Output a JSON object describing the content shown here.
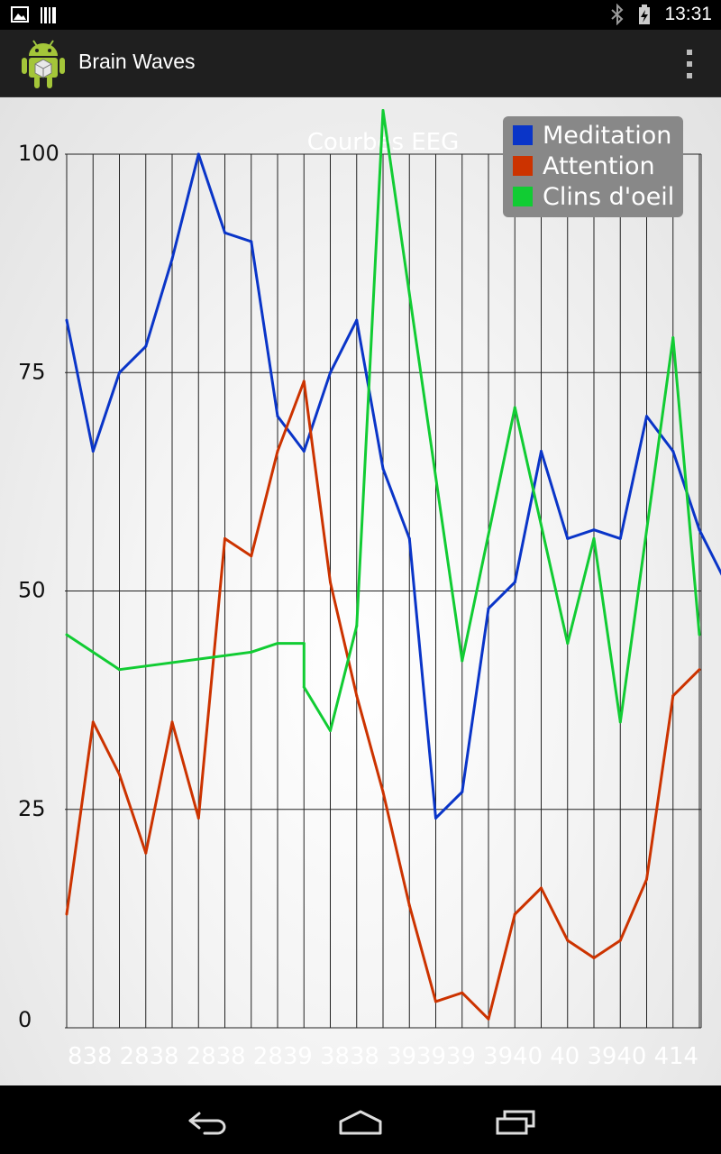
{
  "status_bar": {
    "time": "13:31",
    "left_icons": [
      "image-icon",
      "barcode-icon"
    ],
    "right_icons": [
      "bluetooth-icon",
      "battery-charging-icon"
    ]
  },
  "action_bar": {
    "title": "Brain Waves",
    "app_icon": "android-robot-icon",
    "menu_icon": "overflow-menu-icon"
  },
  "nav_bar": {
    "icons": [
      "back-icon",
      "home-icon",
      "recent-apps-icon"
    ]
  },
  "chart_data": {
    "type": "line",
    "title": "Courbes EEG",
    "ylim": [
      0,
      100
    ],
    "y_ticks": [
      0,
      25,
      50,
      75,
      100
    ],
    "grid": true,
    "legend_position": "top-right",
    "x_tick_label_text": "838 2838 2838 2839 3838 393939 3940 40 3940 414",
    "series": [
      {
        "name": "Meditation",
        "color": "#0a35c8",
        "values": [
          81,
          66,
          75,
          78,
          88,
          100,
          91,
          90,
          70,
          66,
          75,
          81,
          64,
          56,
          24,
          27,
          48,
          51,
          66,
          56,
          57,
          56,
          70,
          66,
          57,
          51
        ]
      },
      {
        "name": "Attention",
        "color": "#cc3300",
        "values": [
          13,
          35,
          29,
          20,
          35,
          24,
          56,
          54,
          66,
          74,
          51,
          38,
          27,
          14,
          3,
          4,
          1,
          13,
          16,
          10,
          8,
          10,
          17,
          38,
          41
        ]
      },
      {
        "name": "Clins d'oeil",
        "color": "#11cc33",
        "points": [
          [
            0,
            45
          ],
          [
            2,
            41
          ],
          [
            7,
            43
          ],
          [
            8,
            44
          ],
          [
            9,
            44
          ],
          [
            9,
            39
          ],
          [
            10,
            34
          ],
          [
            11,
            46
          ],
          [
            12,
            105
          ],
          [
            15,
            42
          ],
          [
            17,
            71
          ],
          [
            19,
            44
          ],
          [
            20,
            56
          ],
          [
            21,
            35
          ],
          [
            23,
            79
          ],
          [
            24,
            45
          ]
        ]
      }
    ]
  }
}
